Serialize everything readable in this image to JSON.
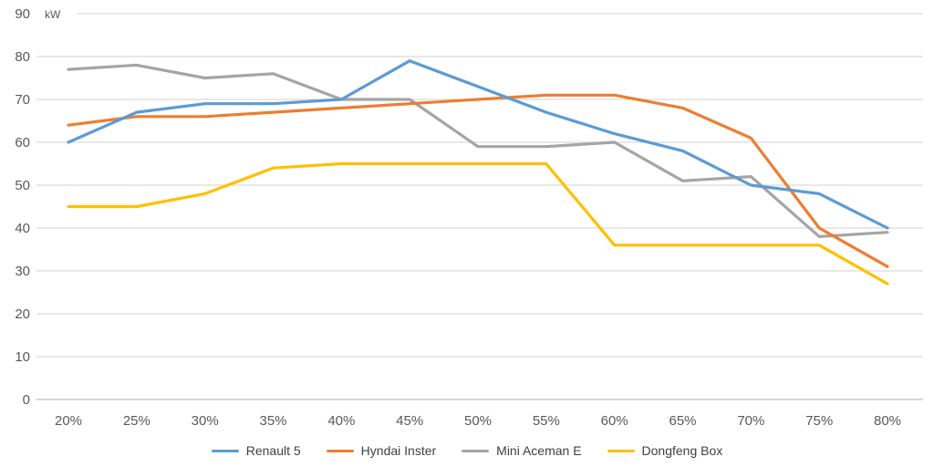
{
  "chart_data": {
    "type": "line",
    "title": "",
    "xlabel": "",
    "ylabel": "",
    "unit_label": "kW",
    "x_tick_labels": [
      "20%",
      "25%",
      "30%",
      "35%",
      "40%",
      "45%",
      "50%",
      "55%",
      "60%",
      "65%",
      "70%",
      "75%",
      "80%"
    ],
    "y_ticks": [
      0,
      10,
      20,
      30,
      40,
      50,
      60,
      70,
      80,
      90
    ],
    "ylim": [
      0,
      90
    ],
    "grid": "horizontal",
    "legend_position": "bottom-center",
    "axis_text_color": "#595959",
    "gridline_color": "#D9D9D9",
    "axis_line_color": "#BFBFBF",
    "background_color": "#FFFFFF",
    "series": [
      {
        "name": "Renault 5",
        "color": "#5B9BD5",
        "values": [
          60,
          67,
          69,
          69,
          70,
          79,
          73,
          67,
          62,
          58,
          50,
          48,
          40
        ]
      },
      {
        "name": "Hyndai Inster",
        "color": "#ED7D31",
        "values": [
          64,
          66,
          66,
          67,
          68,
          69,
          70,
          71,
          71,
          68,
          61,
          40,
          31
        ]
      },
      {
        "name": "Mini Aceman E",
        "color": "#A5A5A5",
        "values": [
          77,
          78,
          75,
          76,
          70,
          70,
          59,
          59,
          60,
          51,
          52,
          38,
          39
        ]
      },
      {
        "name": "Dongfeng Box",
        "color": "#FFC000",
        "values": [
          45,
          45,
          48,
          54,
          55,
          55,
          55,
          55,
          36,
          36,
          36,
          36,
          27
        ]
      }
    ]
  }
}
